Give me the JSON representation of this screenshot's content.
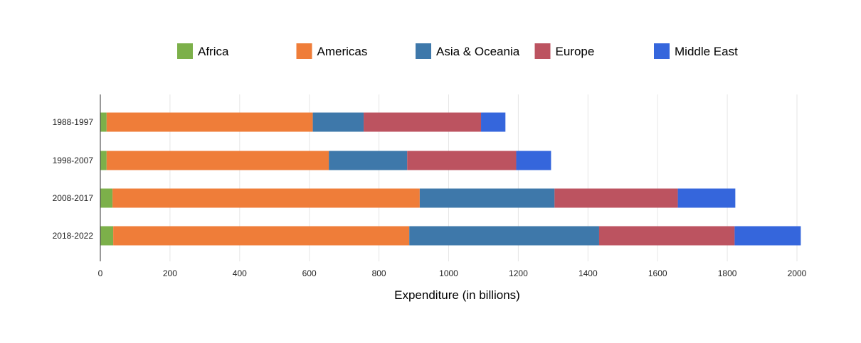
{
  "chart_data": {
    "type": "bar",
    "orientation": "horizontal",
    "stacked": true,
    "title": "",
    "xlabel": "Expenditure (in billions)",
    "ylabel": "",
    "categories": [
      "1988-1997",
      "1998-2007",
      "2008-2017",
      "2018-2022"
    ],
    "series": [
      {
        "name": "Africa",
        "color": "#7cb04a",
        "values": [
          18,
          18,
          35,
          37
        ]
      },
      {
        "name": "Americas",
        "color": "#ef7d39",
        "values": [
          592,
          638,
          882,
          850
        ]
      },
      {
        "name": "Asia & Oceania",
        "color": "#3e78aa",
        "values": [
          146,
          225,
          387,
          545
        ]
      },
      {
        "name": "Europe",
        "color": "#bc5360",
        "values": [
          337,
          313,
          354,
          389
        ]
      },
      {
        "name": "Middle East",
        "color": "#3566dc",
        "values": [
          70,
          100,
          165,
          190
        ]
      }
    ],
    "xlim": [
      0,
      2000
    ],
    "xticks": [
      0,
      200,
      400,
      600,
      800,
      1000,
      1200,
      1400,
      1600,
      1800,
      2000
    ],
    "grid": true,
    "legend_position": "top"
  }
}
